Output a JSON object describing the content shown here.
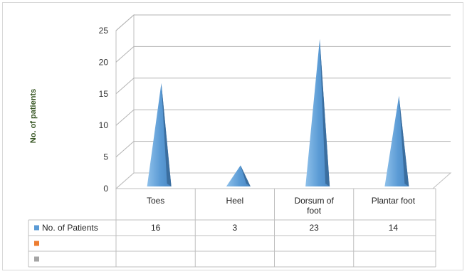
{
  "chart_data": {
    "type": "bar",
    "bar_shape": "cone",
    "categories": [
      "Toes",
      "Heel",
      "Dorsum of\nfoot",
      "Plantar foot"
    ],
    "series": [
      {
        "name": "No. of Patients",
        "values": [
          16,
          3,
          23,
          14
        ],
        "color": "#5b9bd5"
      },
      {
        "name": "",
        "values": [
          null,
          null,
          null,
          null
        ],
        "color": "#ed7d31"
      },
      {
        "name": "",
        "values": [
          null,
          null,
          null,
          null
        ],
        "color": "#a5a5a5"
      }
    ],
    "ylabel": "No. of patients",
    "ylabel_color": "#375623",
    "ylim": [
      0,
      25
    ],
    "yticks": [
      0,
      5,
      10,
      15,
      20,
      25
    ],
    "grid": true,
    "legend": "data-table"
  }
}
